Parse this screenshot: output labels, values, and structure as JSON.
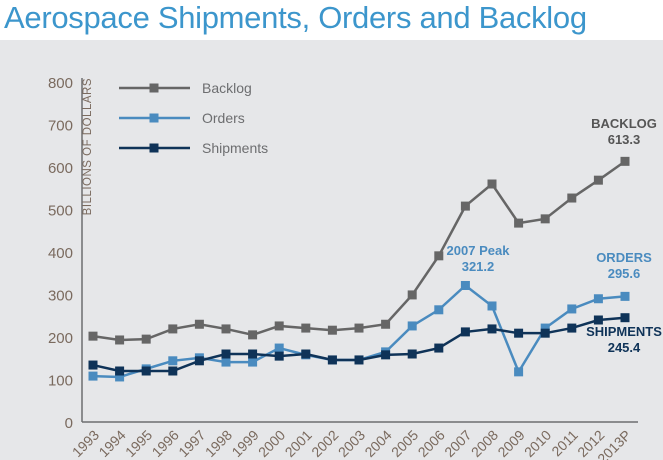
{
  "chart_data": {
    "type": "line",
    "title": "Aerospace Shipments, Orders and Backlog",
    "ylabel": "BILLIONS OF DOLLARS",
    "xlabel": "",
    "ylim": [
      0,
      800
    ],
    "yticks": [
      "0",
      "100",
      "200",
      "300",
      "400",
      "500",
      "600",
      "700",
      "800"
    ],
    "categories": [
      "1993",
      "1994",
      "1995",
      "1996",
      "1997",
      "1998",
      "1999",
      "2000",
      "2001",
      "2002",
      "2003",
      "2004",
      "2005",
      "2006",
      "2007",
      "2008",
      "2009",
      "2010",
      "2011",
      "2012",
      "2013P"
    ],
    "grid": false,
    "legend_position": "top-left",
    "series": [
      {
        "name": "Backlog",
        "color": "#666666",
        "values": [
          202,
          193,
          195,
          219,
          230,
          219,
          205,
          226,
          221,
          216,
          221,
          230,
          299,
          391,
          508,
          560,
          468,
          478,
          527,
          569,
          613.3
        ]
      },
      {
        "name": "Orders",
        "color": "#4a8bbf",
        "values": [
          108,
          106,
          125,
          144,
          151,
          141,
          141,
          174,
          158,
          146,
          146,
          165,
          226,
          264,
          321.2,
          273,
          118,
          221,
          266,
          290,
          295.6
        ]
      },
      {
        "name": "Shipments",
        "color": "#0f3358",
        "values": [
          134,
          120,
          120,
          120,
          144,
          160,
          160,
          155,
          160,
          146,
          146,
          158,
          160,
          174,
          212,
          219,
          209,
          209,
          221,
          240,
          245.4
        ]
      }
    ],
    "annotations": [
      {
        "line1": "BACKLOG",
        "line2": "613.3",
        "color": "#555555"
      },
      {
        "line1": "2007 Peak",
        "line2": "321.2",
        "color": "#4a8bbf"
      },
      {
        "line1": "ORDERS",
        "line2": "295.6",
        "color": "#4a8bbf"
      },
      {
        "line1": "SHIPMENTS",
        "line2": "245.4",
        "color": "#0f3358"
      }
    ]
  }
}
